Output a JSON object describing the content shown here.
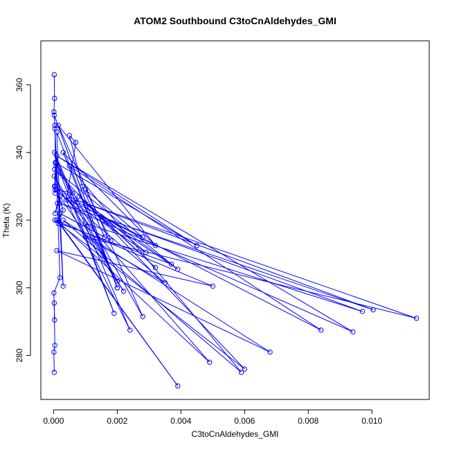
{
  "chart_data": {
    "type": "line",
    "title": "ATOM2 Southbound C3toCnAldehydes_GMI",
    "xlabel": "C3toCnAldehydes_GMI",
    "ylabel": "Theta (K)",
    "xlim": [
      -0.0004,
      0.0118
    ],
    "ylim": [
      267,
      373
    ],
    "xticks": [
      "0.000",
      "0.002",
      "0.004",
      "0.006",
      "0.008",
      "0.010"
    ],
    "yticks": [
      "280",
      "300",
      "320",
      "340",
      "360"
    ],
    "grid": false,
    "series_color": "#0000ff",
    "series": [
      {
        "x": [
          2e-05,
          3e-05,
          1e-05,
          4e-05,
          6e-05,
          3e-05,
          5e-05,
          8e-05,
          0.00012,
          5e-05,
          0.0002,
          0.00015,
          0.0003,
          0.0001,
          0.0006,
          0.0004,
          0.0007,
          0.0005,
          0.0009,
          0.0016,
          0.0002,
          0.0018,
          0.001,
          0.0028,
          0.0005,
          0.0029,
          0.0008,
          0.0032,
          0.001,
          0.0037,
          0.0002,
          0.0039,
          0.0001,
          0.0049,
          5e-05,
          0.0039,
          3e-05,
          0.006,
          4e-05,
          0.005,
          0.0001,
          0.0068,
          0.0003,
          0.0059,
          0.0005,
          0.0084,
          0.0015,
          0.0097,
          0.001,
          0.002,
          6e-05,
          0.0045,
          0.0001,
          0.0094,
          0.0002,
          0.01004,
          0.0007,
          0.0114,
          0.001,
          0.0035,
          5e-05,
          0.0022,
          2e-05,
          0.0024,
          3e-05,
          0.0019,
          8e-05,
          0.0028,
          0.00015,
          0.0032,
          0.0003,
          0.002,
          2e-05,
          0.002,
          0.0001,
          0.0003,
          4e-05,
          0.0002,
          1e-05,
          3e-05,
          2e-05,
          4e-05,
          1e-05,
          2e-05
        ],
        "y": [
          363,
          356,
          352,
          348,
          337,
          330,
          328,
          336,
          325,
          322,
          327,
          319,
          323,
          329,
          328,
          326,
          343,
          345,
          330,
          315,
          322,
          314,
          329,
          315,
          326,
          310.5,
          327,
          306,
          325,
          307,
          319,
          271,
          320,
          278,
          330,
          305.5,
          335,
          276,
          320,
          300.5,
          311,
          281,
          320,
          275,
          336,
          287.5,
          321,
          293,
          319,
          302,
          337,
          312.5,
          339,
          287,
          325,
          293.5,
          326,
          291,
          315,
          301.5,
          329,
          299,
          333,
          287.5,
          340,
          292.5,
          337,
          291.5,
          348,
          312.5,
          340,
          300,
          351,
          300,
          346,
          300.5,
          347,
          303,
          298.5,
          290.5,
          295.5,
          283,
          281,
          275
        ]
      }
    ]
  }
}
